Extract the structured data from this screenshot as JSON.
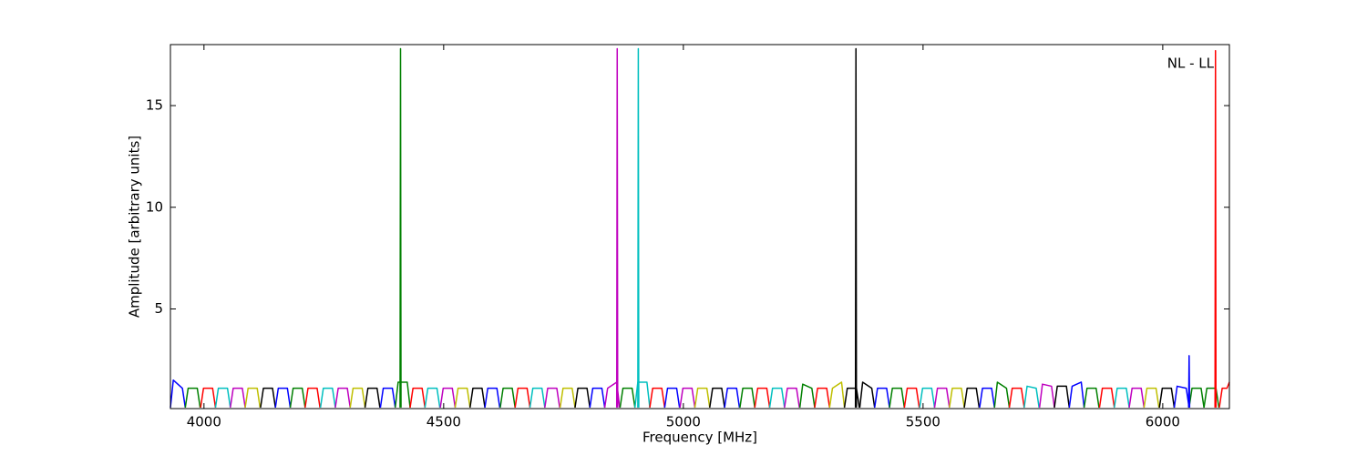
{
  "chart_data": {
    "type": "line",
    "xlabel": "Frequency [MHz]",
    "ylabel": "Amplitude [arbitrary units]",
    "annotation": "NL - LL",
    "xlim": [
      3930,
      6139
    ],
    "ylim": [
      0.1,
      18
    ],
    "xticks": [
      4000,
      4500,
      5000,
      5500,
      6000
    ],
    "yticks": [
      5,
      10,
      15
    ],
    "series": [
      {
        "color": "#0000ff",
        "x": [
          3930,
          3936,
          3955,
          3961
        ],
        "values": [
          0.15,
          1.5,
          1.1,
          0.15
        ]
      },
      {
        "color": "#008000",
        "x": [
          3961,
          3967,
          3986,
          3992
        ],
        "values": [
          0.15,
          1.1,
          1.1,
          0.15
        ]
      },
      {
        "color": "#ff0000",
        "x": [
          3993,
          3999,
          4018,
          4024
        ],
        "values": [
          0.15,
          1.1,
          1.1,
          0.15
        ]
      },
      {
        "color": "#00bfbf",
        "x": [
          4024,
          4030,
          4049,
          4055
        ],
        "values": [
          0.15,
          1.1,
          1.1,
          0.15
        ]
      },
      {
        "color": "#bf00bf",
        "x": [
          4055,
          4061,
          4080,
          4086
        ],
        "values": [
          0.15,
          1.1,
          1.1,
          0.15
        ]
      },
      {
        "color": "#bfbf00",
        "x": [
          4086,
          4092,
          4111,
          4117
        ],
        "values": [
          0.15,
          1.1,
          1.1,
          0.15
        ]
      },
      {
        "color": "#000000",
        "x": [
          4118,
          4124,
          4143,
          4149
        ],
        "values": [
          0.15,
          1.1,
          1.1,
          0.15
        ]
      },
      {
        "color": "#0000ff",
        "x": [
          4149,
          4155,
          4174,
          4180
        ],
        "values": [
          0.15,
          1.1,
          1.1,
          0.15
        ]
      },
      {
        "color": "#008000",
        "x": [
          4180,
          4186,
          4205,
          4211
        ],
        "values": [
          0.15,
          1.1,
          1.1,
          0.15
        ]
      },
      {
        "color": "#ff0000",
        "x": [
          4211,
          4217,
          4236,
          4242
        ],
        "values": [
          0.15,
          1.1,
          1.1,
          0.15
        ]
      },
      {
        "color": "#00bfbf",
        "x": [
          4243,
          4249,
          4268,
          4274
        ],
        "values": [
          0.15,
          1.1,
          1.1,
          0.15
        ]
      },
      {
        "color": "#bf00bf",
        "x": [
          4274,
          4280,
          4299,
          4305
        ],
        "values": [
          0.15,
          1.1,
          1.1,
          0.15
        ]
      },
      {
        "color": "#bfbf00",
        "x": [
          4305,
          4311,
          4330,
          4336
        ],
        "values": [
          0.15,
          1.1,
          1.1,
          0.15
        ]
      },
      {
        "color": "#000000",
        "x": [
          4336,
          4342,
          4361,
          4367
        ],
        "values": [
          0.15,
          1.1,
          1.1,
          0.15
        ]
      },
      {
        "color": "#0000ff",
        "x": [
          4368,
          4374,
          4393,
          4399
        ],
        "values": [
          0.15,
          1.1,
          1.1,
          0.15
        ]
      },
      {
        "color": "#008000",
        "x": [
          4399,
          4405,
          4424,
          4430
        ],
        "values": [
          0.15,
          1.4,
          1.4,
          0.15
        ]
      },
      {
        "color": "#ff0000",
        "x": [
          4430,
          4436,
          4455,
          4461
        ],
        "values": [
          0.15,
          1.1,
          1.1,
          0.15
        ]
      },
      {
        "color": "#00bfbf",
        "x": [
          4461,
          4467,
          4486,
          4492
        ],
        "values": [
          0.15,
          1.1,
          1.1,
          0.15
        ]
      },
      {
        "color": "#bf00bf",
        "x": [
          4493,
          4499,
          4518,
          4524
        ],
        "values": [
          0.15,
          1.1,
          1.1,
          0.15
        ]
      },
      {
        "color": "#bfbf00",
        "x": [
          4524,
          4530,
          4549,
          4555
        ],
        "values": [
          0.15,
          1.1,
          1.1,
          0.15
        ]
      },
      {
        "color": "#000000",
        "x": [
          4555,
          4561,
          4580,
          4586
        ],
        "values": [
          0.15,
          1.1,
          1.1,
          0.15
        ]
      },
      {
        "color": "#0000ff",
        "x": [
          4586,
          4592,
          4611,
          4617
        ],
        "values": [
          0.15,
          1.1,
          1.1,
          0.15
        ]
      },
      {
        "color": "#008000",
        "x": [
          4618,
          4624,
          4643,
          4649
        ],
        "values": [
          0.15,
          1.1,
          1.1,
          0.15
        ]
      },
      {
        "color": "#ff0000",
        "x": [
          4649,
          4655,
          4674,
          4680
        ],
        "values": [
          0.15,
          1.1,
          1.1,
          0.15
        ]
      },
      {
        "color": "#00bfbf",
        "x": [
          4680,
          4686,
          4705,
          4711
        ],
        "values": [
          0.15,
          1.1,
          1.1,
          0.15
        ]
      },
      {
        "color": "#bf00bf",
        "x": [
          4711,
          4717,
          4736,
          4742
        ],
        "values": [
          0.15,
          1.1,
          1.1,
          0.15
        ]
      },
      {
        "color": "#bfbf00",
        "x": [
          4743,
          4749,
          4768,
          4774
        ],
        "values": [
          0.15,
          1.1,
          1.1,
          0.15
        ]
      },
      {
        "color": "#000000",
        "x": [
          4774,
          4780,
          4799,
          4805
        ],
        "values": [
          0.15,
          1.1,
          1.1,
          0.15
        ]
      },
      {
        "color": "#0000ff",
        "x": [
          4805,
          4811,
          4830,
          4836
        ],
        "values": [
          0.15,
          1.1,
          1.1,
          0.15
        ]
      },
      {
        "color": "#bf00bf",
        "x": [
          4836,
          4842,
          4861,
          4867
        ],
        "values": [
          0.15,
          1.1,
          1.4,
          0.15
        ]
      },
      {
        "color": "#008000",
        "x": [
          4868,
          4874,
          4893,
          4899
        ],
        "values": [
          0.15,
          1.1,
          1.1,
          0.15
        ]
      },
      {
        "color": "#00bfbf",
        "x": [
          4899,
          4905,
          4924,
          4930
        ],
        "values": [
          0.15,
          1.4,
          1.4,
          0.15
        ]
      },
      {
        "color": "#ff0000",
        "x": [
          4930,
          4936,
          4955,
          4961
        ],
        "values": [
          0.15,
          1.1,
          1.1,
          0.15
        ]
      },
      {
        "color": "#0000ff",
        "x": [
          4961,
          4967,
          4986,
          4992
        ],
        "values": [
          0.15,
          1.1,
          1.1,
          0.15
        ]
      },
      {
        "color": "#bf00bf",
        "x": [
          4993,
          4999,
          5018,
          5024
        ],
        "values": [
          0.15,
          1.1,
          1.1,
          0.15
        ]
      },
      {
        "color": "#bfbf00",
        "x": [
          5024,
          5030,
          5049,
          5055
        ],
        "values": [
          0.15,
          1.1,
          1.1,
          0.15
        ]
      },
      {
        "color": "#000000",
        "x": [
          5055,
          5061,
          5080,
          5086
        ],
        "values": [
          0.15,
          1.1,
          1.1,
          0.15
        ]
      },
      {
        "color": "#0000ff",
        "x": [
          5086,
          5092,
          5111,
          5117
        ],
        "values": [
          0.15,
          1.1,
          1.1,
          0.15
        ]
      },
      {
        "color": "#008000",
        "x": [
          5118,
          5124,
          5143,
          5149
        ],
        "values": [
          0.15,
          1.1,
          1.1,
          0.15
        ]
      },
      {
        "color": "#ff0000",
        "x": [
          5149,
          5155,
          5174,
          5180
        ],
        "values": [
          0.15,
          1.1,
          1.1,
          0.15
        ]
      },
      {
        "color": "#00bfbf",
        "x": [
          5180,
          5186,
          5205,
          5211
        ],
        "values": [
          0.15,
          1.1,
          1.1,
          0.15
        ]
      },
      {
        "color": "#bf00bf",
        "x": [
          5211,
          5217,
          5236,
          5242
        ],
        "values": [
          0.15,
          1.1,
          1.1,
          0.15
        ]
      },
      {
        "color": "#008000",
        "x": [
          5243,
          5249,
          5268,
          5274
        ],
        "values": [
          0.15,
          1.3,
          1.1,
          0.15
        ]
      },
      {
        "color": "#ff0000",
        "x": [
          5274,
          5280,
          5299,
          5305
        ],
        "values": [
          0.15,
          1.1,
          1.1,
          0.15
        ]
      },
      {
        "color": "#bfbf00",
        "x": [
          5305,
          5311,
          5330,
          5336
        ],
        "values": [
          0.15,
          1.1,
          1.4,
          0.15
        ]
      },
      {
        "color": "#000000",
        "x": [
          5336,
          5342,
          5361,
          5367
        ],
        "values": [
          0.15,
          1.1,
          1.1,
          0.15
        ]
      },
      {
        "color": "#000000",
        "x": [
          5368,
          5374,
          5393,
          5399
        ],
        "values": [
          0.15,
          1.4,
          1.1,
          0.15
        ]
      },
      {
        "color": "#0000ff",
        "x": [
          5399,
          5405,
          5424,
          5430
        ],
        "values": [
          0.15,
          1.1,
          1.1,
          0.15
        ]
      },
      {
        "color": "#008000",
        "x": [
          5430,
          5436,
          5455,
          5461
        ],
        "values": [
          0.15,
          1.1,
          1.1,
          0.15
        ]
      },
      {
        "color": "#ff0000",
        "x": [
          5461,
          5467,
          5486,
          5492
        ],
        "values": [
          0.15,
          1.1,
          1.1,
          0.15
        ]
      },
      {
        "color": "#00bfbf",
        "x": [
          5493,
          5499,
          5518,
          5524
        ],
        "values": [
          0.15,
          1.1,
          1.1,
          0.15
        ]
      },
      {
        "color": "#bf00bf",
        "x": [
          5524,
          5530,
          5549,
          5555
        ],
        "values": [
          0.15,
          1.1,
          1.1,
          0.15
        ]
      },
      {
        "color": "#bfbf00",
        "x": [
          5555,
          5561,
          5580,
          5586
        ],
        "values": [
          0.15,
          1.1,
          1.1,
          0.15
        ]
      },
      {
        "color": "#000000",
        "x": [
          5586,
          5592,
          5611,
          5617
        ],
        "values": [
          0.15,
          1.1,
          1.1,
          0.15
        ]
      },
      {
        "color": "#0000ff",
        "x": [
          5618,
          5624,
          5643,
          5649
        ],
        "values": [
          0.15,
          1.1,
          1.1,
          0.15
        ]
      },
      {
        "color": "#008000",
        "x": [
          5649,
          5655,
          5674,
          5680
        ],
        "values": [
          0.15,
          1.4,
          1.1,
          0.15
        ]
      },
      {
        "color": "#ff0000",
        "x": [
          5680,
          5686,
          5705,
          5711
        ],
        "values": [
          0.15,
          1.1,
          1.1,
          0.15
        ]
      },
      {
        "color": "#00bfbf",
        "x": [
          5711,
          5717,
          5736,
          5742
        ],
        "values": [
          0.15,
          1.2,
          1.1,
          0.15
        ]
      },
      {
        "color": "#bf00bf",
        "x": [
          5743,
          5749,
          5768,
          5774
        ],
        "values": [
          0.15,
          1.3,
          1.2,
          0.15
        ]
      },
      {
        "color": "#000000",
        "x": [
          5774,
          5780,
          5799,
          5805
        ],
        "values": [
          0.15,
          1.2,
          1.2,
          0.15
        ]
      },
      {
        "color": "#0000ff",
        "x": [
          5805,
          5811,
          5830,
          5836
        ],
        "values": [
          0.15,
          1.2,
          1.4,
          0.15
        ]
      },
      {
        "color": "#008000",
        "x": [
          5836,
          5842,
          5861,
          5867
        ],
        "values": [
          0.15,
          1.1,
          1.1,
          0.15
        ]
      },
      {
        "color": "#ff0000",
        "x": [
          5868,
          5874,
          5893,
          5899
        ],
        "values": [
          0.15,
          1.1,
          1.1,
          0.15
        ]
      },
      {
        "color": "#00bfbf",
        "x": [
          5899,
          5905,
          5924,
          5930
        ],
        "values": [
          0.15,
          1.1,
          1.1,
          0.15
        ]
      },
      {
        "color": "#bf00bf",
        "x": [
          5930,
          5936,
          5955,
          5961
        ],
        "values": [
          0.15,
          1.1,
          1.1,
          0.15
        ]
      },
      {
        "color": "#bfbf00",
        "x": [
          5961,
          5967,
          5986,
          5992
        ],
        "values": [
          0.15,
          1.1,
          1.1,
          0.15
        ]
      },
      {
        "color": "#000000",
        "x": [
          5993,
          5999,
          6018,
          6024
        ],
        "values": [
          0.15,
          1.1,
          1.1,
          0.15
        ]
      },
      {
        "color": "#0000ff",
        "x": [
          6024,
          6030,
          6049,
          6055
        ],
        "values": [
          0.15,
          1.2,
          1.1,
          0.15
        ]
      },
      {
        "color": "#008000",
        "x": [
          6055,
          6061,
          6080,
          6086
        ],
        "values": [
          0.15,
          1.1,
          1.1,
          0.15
        ]
      },
      {
        "color": "#008000",
        "x": [
          6086,
          6092,
          6111,
          6117
        ],
        "values": [
          0.15,
          1.1,
          1.1,
          0.15
        ]
      },
      {
        "color": "#ff0000",
        "x": [
          6118,
          6124,
          6134,
          6139
        ],
        "values": [
          0.15,
          1.1,
          1.1,
          1.4
        ]
      },
      {
        "color": "#008000",
        "x": [
          4409,
          4410,
          4411
        ],
        "values": [
          0.15,
          17.8,
          0.15
        ]
      },
      {
        "color": "#bf00bf",
        "x": [
          4861,
          4862,
          4863
        ],
        "values": [
          0.15,
          17.8,
          0.15
        ]
      },
      {
        "color": "#00bfbf",
        "x": [
          4905,
          4906,
          4907
        ],
        "values": [
          0.15,
          17.8,
          0.15
        ]
      },
      {
        "color": "#000000",
        "x": [
          5359,
          5360,
          5361
        ],
        "values": [
          0.15,
          17.8,
          0.15
        ]
      },
      {
        "color": "#0000ff",
        "x": [
          6054,
          6055,
          6056
        ],
        "values": [
          0.15,
          2.7,
          0.15
        ]
      },
      {
        "color": "#ff0000",
        "x": [
          6109,
          6110,
          6111
        ],
        "values": [
          0.15,
          17.7,
          0.15
        ]
      }
    ]
  }
}
